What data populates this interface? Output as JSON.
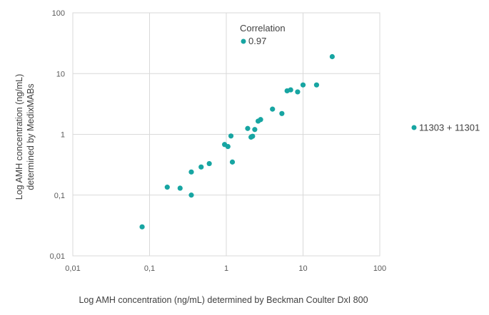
{
  "chart_data": {
    "type": "scatter",
    "title": "",
    "xlabel": "Log AMH concentration (ng/mL) determined by Beckman Coulter DxI 800",
    "ylabel": [
      "Log AMH concentration (ng/mL)",
      "determined by MedixMABs"
    ],
    "x_scale": "log",
    "y_scale": "log",
    "xlim": [
      0.01,
      100
    ],
    "ylim": [
      0.01,
      100
    ],
    "x_ticks": [
      {
        "value": 0.01,
        "label": "0,01"
      },
      {
        "value": 0.1,
        "label": "0,1"
      },
      {
        "value": 1,
        "label": "1"
      },
      {
        "value": 10,
        "label": "10"
      },
      {
        "value": 100,
        "label": "100"
      }
    ],
    "y_ticks": [
      {
        "value": 0.01,
        "label": "0,01"
      },
      {
        "value": 0.1,
        "label": "0,1"
      },
      {
        "value": 1,
        "label": "1"
      },
      {
        "value": 10,
        "label": "10"
      },
      {
        "value": 100,
        "label": "100"
      }
    ],
    "grid": true,
    "legend_position": "right",
    "series": [
      {
        "name": "11303 + 11301",
        "color": "#17a5a2",
        "points": [
          {
            "x": 0.08,
            "y": 0.03
          },
          {
            "x": 0.17,
            "y": 0.135
          },
          {
            "x": 0.25,
            "y": 0.13
          },
          {
            "x": 0.35,
            "y": 0.1
          },
          {
            "x": 0.35,
            "y": 0.24
          },
          {
            "x": 0.47,
            "y": 0.29
          },
          {
            "x": 0.6,
            "y": 0.33
          },
          {
            "x": 0.95,
            "y": 0.68
          },
          {
            "x": 1.05,
            "y": 0.63
          },
          {
            "x": 1.15,
            "y": 0.94
          },
          {
            "x": 1.2,
            "y": 0.35
          },
          {
            "x": 1.9,
            "y": 1.25
          },
          {
            "x": 2.1,
            "y": 0.9
          },
          {
            "x": 2.2,
            "y": 0.93
          },
          {
            "x": 2.35,
            "y": 1.2
          },
          {
            "x": 2.6,
            "y": 1.65
          },
          {
            "x": 2.8,
            "y": 1.75
          },
          {
            "x": 4.0,
            "y": 2.6
          },
          {
            "x": 5.3,
            "y": 2.2
          },
          {
            "x": 6.2,
            "y": 5.2
          },
          {
            "x": 6.9,
            "y": 5.4
          },
          {
            "x": 8.5,
            "y": 5.0
          },
          {
            "x": 10.0,
            "y": 6.5
          },
          {
            "x": 15.0,
            "y": 6.5
          },
          {
            "x": 24.0,
            "y": 19.0
          }
        ]
      }
    ],
    "annotation": {
      "label": "Correlation",
      "value": "0.97",
      "color": "#17a5a2"
    }
  }
}
